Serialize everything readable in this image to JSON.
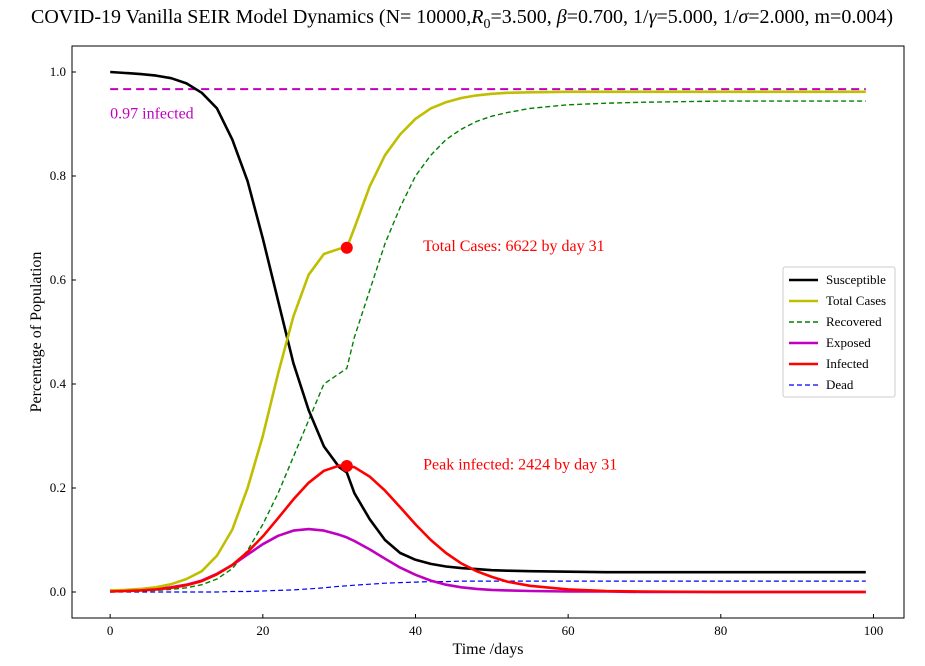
{
  "chart_data": {
    "type": "line",
    "title": "COVID-19 Vanilla SEIR Model Dynamics (N= 10000,R0=3.500, β=0.700, 1/γ=5.000, 1/σ=2.000, m=0.004)",
    "title_parts": {
      "prefix": "COVID-19 Vanilla SEIR Model Dynamics (N= 10000,",
      "r": "R",
      "r_sub": "0",
      "after_r": "=3.500, ",
      "beta": "β",
      "after_beta": "=0.700, 1/",
      "gamma": "γ",
      "after_gamma": "=5.000, 1/",
      "sigma": "σ",
      "suffix": "=2.000, m=0.004)"
    },
    "xlabel": "Time /days",
    "ylabel": "Percentage of Population",
    "xlim": [
      -5,
      104
    ],
    "ylim": [
      -0.05,
      1.05
    ],
    "xticks": [
      0,
      20,
      40,
      60,
      80,
      100
    ],
    "yticks": [
      0.0,
      0.2,
      0.4,
      0.6,
      0.8,
      1.0
    ],
    "xtick_labels": [
      "0",
      "20",
      "40",
      "60",
      "80",
      "100"
    ],
    "ytick_labels": [
      "0.0",
      "0.2",
      "0.4",
      "0.6",
      "0.8",
      "1.0"
    ],
    "grid": false,
    "legend_position": "center-right",
    "x": [
      0,
      2,
      4,
      6,
      8,
      10,
      12,
      14,
      16,
      18,
      20,
      22,
      24,
      26,
      28,
      30,
      31,
      32,
      34,
      36,
      38,
      40,
      42,
      44,
      46,
      48,
      50,
      52,
      55,
      60,
      65,
      70,
      80,
      90,
      99
    ],
    "series": [
      {
        "name": "Susceptible",
        "color": "#000000",
        "style": "solid",
        "width": 2.6,
        "values": [
          1.0,
          0.998,
          0.996,
          0.993,
          0.988,
          0.978,
          0.96,
          0.93,
          0.87,
          0.79,
          0.68,
          0.56,
          0.44,
          0.35,
          0.28,
          0.24,
          0.23,
          0.19,
          0.14,
          0.1,
          0.075,
          0.062,
          0.054,
          0.049,
          0.046,
          0.044,
          0.042,
          0.041,
          0.04,
          0.039,
          0.038,
          0.038,
          0.038,
          0.038,
          0.038
        ]
      },
      {
        "name": "Total Cases",
        "color": "#bfbf00",
        "style": "solid",
        "width": 2.6,
        "values": [
          0.003,
          0.004,
          0.006,
          0.009,
          0.015,
          0.025,
          0.04,
          0.07,
          0.12,
          0.2,
          0.3,
          0.42,
          0.53,
          0.61,
          0.65,
          0.66,
          0.662,
          0.7,
          0.78,
          0.84,
          0.88,
          0.91,
          0.93,
          0.942,
          0.95,
          0.955,
          0.958,
          0.96,
          0.961,
          0.962,
          0.962,
          0.962,
          0.962,
          0.962,
          0.962
        ]
      },
      {
        "name": "Recovered",
        "color": "#008000",
        "style": "dashed",
        "width": 1.4,
        "values": [
          0.0,
          0.001,
          0.002,
          0.003,
          0.005,
          0.008,
          0.014,
          0.025,
          0.045,
          0.08,
          0.13,
          0.19,
          0.26,
          0.33,
          0.4,
          0.42,
          0.43,
          0.49,
          0.58,
          0.67,
          0.74,
          0.8,
          0.84,
          0.87,
          0.89,
          0.905,
          0.915,
          0.922,
          0.93,
          0.937,
          0.94,
          0.942,
          0.944,
          0.944,
          0.944
        ]
      },
      {
        "name": "Exposed",
        "color": "#bf00bf",
        "style": "solid",
        "width": 2.6,
        "values": [
          0.003,
          0.003,
          0.004,
          0.006,
          0.009,
          0.014,
          0.022,
          0.035,
          0.052,
          0.072,
          0.092,
          0.108,
          0.118,
          0.121,
          0.118,
          0.11,
          0.105,
          0.098,
          0.082,
          0.064,
          0.047,
          0.033,
          0.022,
          0.014,
          0.009,
          0.006,
          0.004,
          0.003,
          0.002,
          0.001,
          0.001,
          0.0,
          0.0,
          0.0,
          0.0
        ]
      },
      {
        "name": "Infected",
        "color": "#ff0000",
        "style": "solid",
        "width": 2.6,
        "values": [
          0.001,
          0.002,
          0.003,
          0.005,
          0.008,
          0.013,
          0.021,
          0.034,
          0.052,
          0.077,
          0.107,
          0.142,
          0.178,
          0.21,
          0.233,
          0.243,
          0.2424,
          0.24,
          0.222,
          0.195,
          0.163,
          0.13,
          0.1,
          0.075,
          0.055,
          0.04,
          0.029,
          0.02,
          0.012,
          0.005,
          0.002,
          0.001,
          0.0,
          0.0,
          0.0
        ]
      },
      {
        "name": "Dead",
        "color": "#0000ff",
        "style": "dashed",
        "width": 1.2,
        "values": [
          0.0,
          0.0,
          0.0,
          0.0,
          0.0,
          0.0,
          0.0,
          0.0,
          0.001,
          0.001,
          0.002,
          0.003,
          0.004,
          0.006,
          0.008,
          0.011,
          0.012,
          0.013,
          0.015,
          0.017,
          0.018,
          0.019,
          0.02,
          0.02,
          0.021,
          0.021,
          0.021,
          0.021,
          0.021,
          0.021,
          0.021,
          0.021,
          0.021,
          0.021,
          0.021
        ]
      }
    ],
    "hline": {
      "y": 0.967,
      "x_range": [
        0,
        99
      ],
      "color": "#bf00bf",
      "style": "dashed"
    },
    "markers": [
      {
        "x": 31,
        "y": 0.662,
        "color": "#ff0000"
      },
      {
        "x": 31,
        "y": 0.2424,
        "color": "#ff0000"
      }
    ],
    "annotations": [
      {
        "text": "0.97 infected",
        "x": 0,
        "y": 0.92,
        "color": "#bf00bf"
      },
      {
        "text": "Total Cases: 6622 by day 31",
        "x": 41,
        "y": 0.665,
        "color": "#ff0000"
      },
      {
        "text": "Peak infected: 2424 by day 31",
        "x": 41,
        "y": 0.245,
        "color": "#ff0000"
      }
    ]
  }
}
